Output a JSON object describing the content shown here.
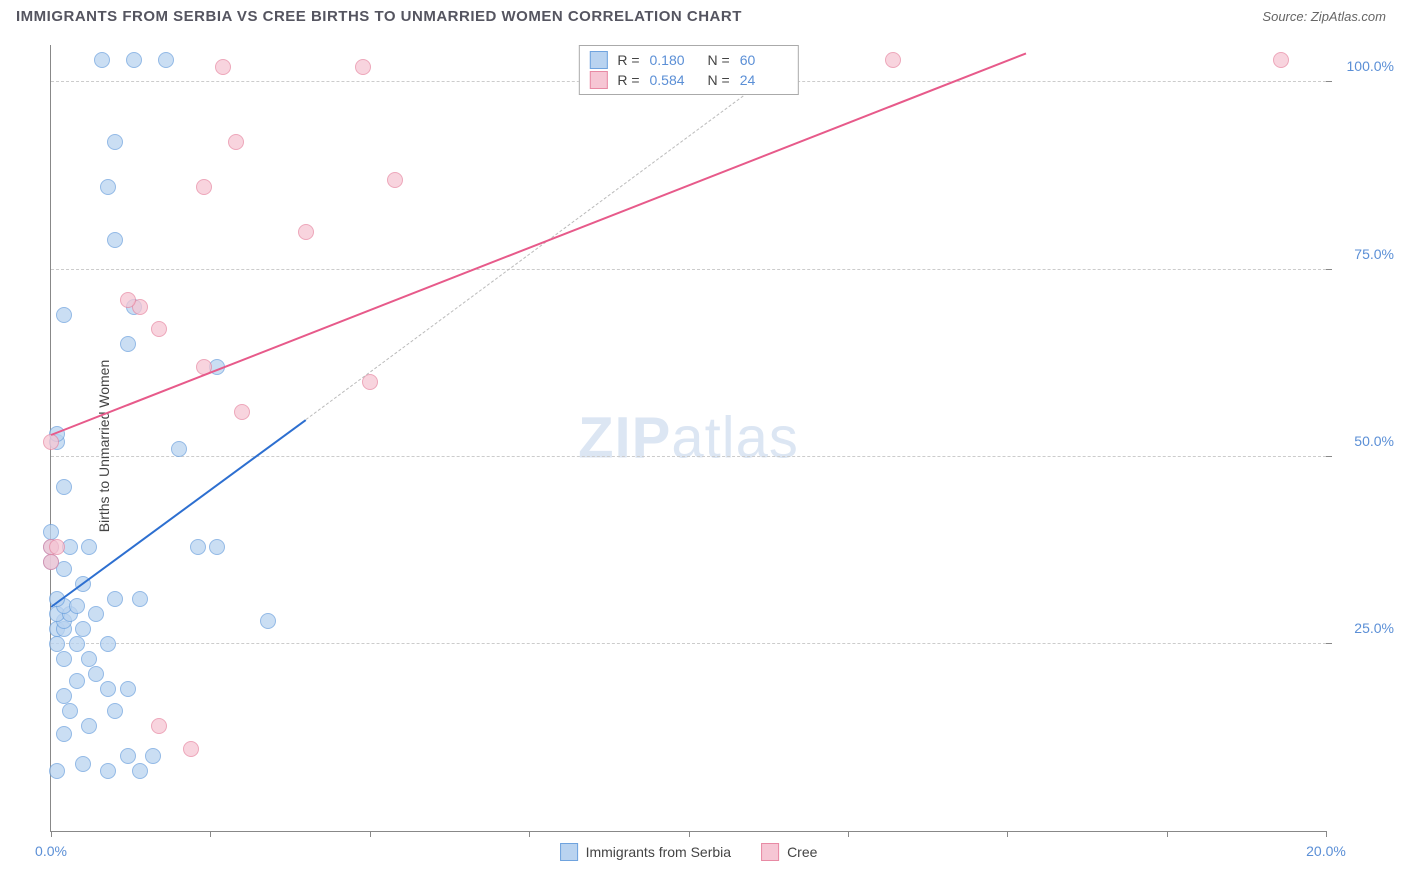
{
  "header": {
    "title": "IMMIGRANTS FROM SERBIA VS CREE BIRTHS TO UNMARRIED WOMEN CORRELATION CHART",
    "source_label": "Source:",
    "source_name": "ZipAtlas.com"
  },
  "watermark": {
    "zip": "ZIP",
    "rest": "atlas"
  },
  "chart": {
    "type": "scatter",
    "background_color": "#ffffff",
    "grid_color": "#cccccc",
    "axis_color": "#888888",
    "tick_color": "#5b8fd6",
    "y_axis_title": "Births to Unmarried Women",
    "xlim": [
      0,
      20
    ],
    "ylim": [
      0,
      105
    ],
    "x_ticks": [
      {
        "v": 0,
        "label": "0.0%"
      },
      {
        "v": 20,
        "label": "20.0%"
      }
    ],
    "x_minor_ticks": [
      2.5,
      5,
      7.5,
      10,
      12.5,
      15,
      17.5
    ],
    "y_ticks": [
      {
        "v": 25,
        "label": "25.0%"
      },
      {
        "v": 50,
        "label": "50.0%"
      },
      {
        "v": 75,
        "label": "75.0%"
      },
      {
        "v": 100,
        "label": "100.0%"
      }
    ],
    "series": [
      {
        "key": "serbia",
        "label": "Immigrants from Serbia",
        "fill": "#b9d3f0",
        "stroke": "#6fa3de",
        "line_color": "#2d6fd0",
        "r_value": "0.180",
        "n_value": "60",
        "trend": {
          "x1": 0,
          "y1": 30,
          "x2": 4,
          "y2": 55
        },
        "trend_ext": {
          "x1": 4,
          "y1": 55,
          "x2": 11.3,
          "y2": 101
        },
        "points": [
          [
            0.1,
            8
          ],
          [
            0.9,
            8
          ],
          [
            1.4,
            8
          ],
          [
            0.5,
            9
          ],
          [
            1.2,
            10
          ],
          [
            1.6,
            10
          ],
          [
            0.2,
            13
          ],
          [
            0.6,
            14
          ],
          [
            0.3,
            16
          ],
          [
            1.0,
            16
          ],
          [
            0.2,
            18
          ],
          [
            0.9,
            19
          ],
          [
            1.2,
            19
          ],
          [
            0.4,
            20
          ],
          [
            0.7,
            21
          ],
          [
            0.2,
            23
          ],
          [
            0.6,
            23
          ],
          [
            0.1,
            25
          ],
          [
            0.4,
            25
          ],
          [
            0.9,
            25
          ],
          [
            0.1,
            27
          ],
          [
            0.2,
            27
          ],
          [
            0.5,
            27
          ],
          [
            0.2,
            28
          ],
          [
            3.4,
            28
          ],
          [
            0.1,
            29
          ],
          [
            0.3,
            29
          ],
          [
            0.7,
            29
          ],
          [
            0.2,
            30
          ],
          [
            0.4,
            30
          ],
          [
            0.1,
            31
          ],
          [
            1.0,
            31
          ],
          [
            1.4,
            31
          ],
          [
            0.5,
            33
          ],
          [
            0.2,
            35
          ],
          [
            0.0,
            36
          ],
          [
            0.0,
            38
          ],
          [
            0.3,
            38
          ],
          [
            0.6,
            38
          ],
          [
            2.3,
            38
          ],
          [
            2.6,
            38
          ],
          [
            0.0,
            40
          ],
          [
            0.2,
            46
          ],
          [
            2.0,
            51
          ],
          [
            0.1,
            52
          ],
          [
            0.1,
            53
          ],
          [
            2.6,
            62
          ],
          [
            1.2,
            65
          ],
          [
            0.2,
            69
          ],
          [
            1.3,
            70
          ],
          [
            1.0,
            79
          ],
          [
            0.9,
            86
          ],
          [
            1.0,
            92
          ],
          [
            0.8,
            103
          ],
          [
            1.3,
            103
          ],
          [
            1.8,
            103
          ]
        ]
      },
      {
        "key": "cree",
        "label": "Cree",
        "fill": "#f6c6d4",
        "stroke": "#e88aa4",
        "line_color": "#e75a8a",
        "r_value": "0.584",
        "n_value": "24",
        "trend": {
          "x1": 0,
          "y1": 53,
          "x2": 15.3,
          "y2": 104
        },
        "points": [
          [
            2.2,
            11
          ],
          [
            1.7,
            14
          ],
          [
            0.0,
            36
          ],
          [
            0.0,
            38
          ],
          [
            0.1,
            38
          ],
          [
            0.0,
            52
          ],
          [
            3.0,
            56
          ],
          [
            5.0,
            60
          ],
          [
            2.4,
            62
          ],
          [
            1.7,
            67
          ],
          [
            1.4,
            70
          ],
          [
            1.2,
            71
          ],
          [
            4.0,
            80
          ],
          [
            2.4,
            86
          ],
          [
            5.4,
            87
          ],
          [
            2.9,
            92
          ],
          [
            2.7,
            102
          ],
          [
            4.9,
            102
          ],
          [
            13.2,
            103
          ],
          [
            19.3,
            103
          ]
        ]
      }
    ],
    "stats_box": {
      "r_label": "R",
      "n_label": "N",
      "eq": "="
    },
    "legend_bottom": {
      "enabled": true
    }
  }
}
